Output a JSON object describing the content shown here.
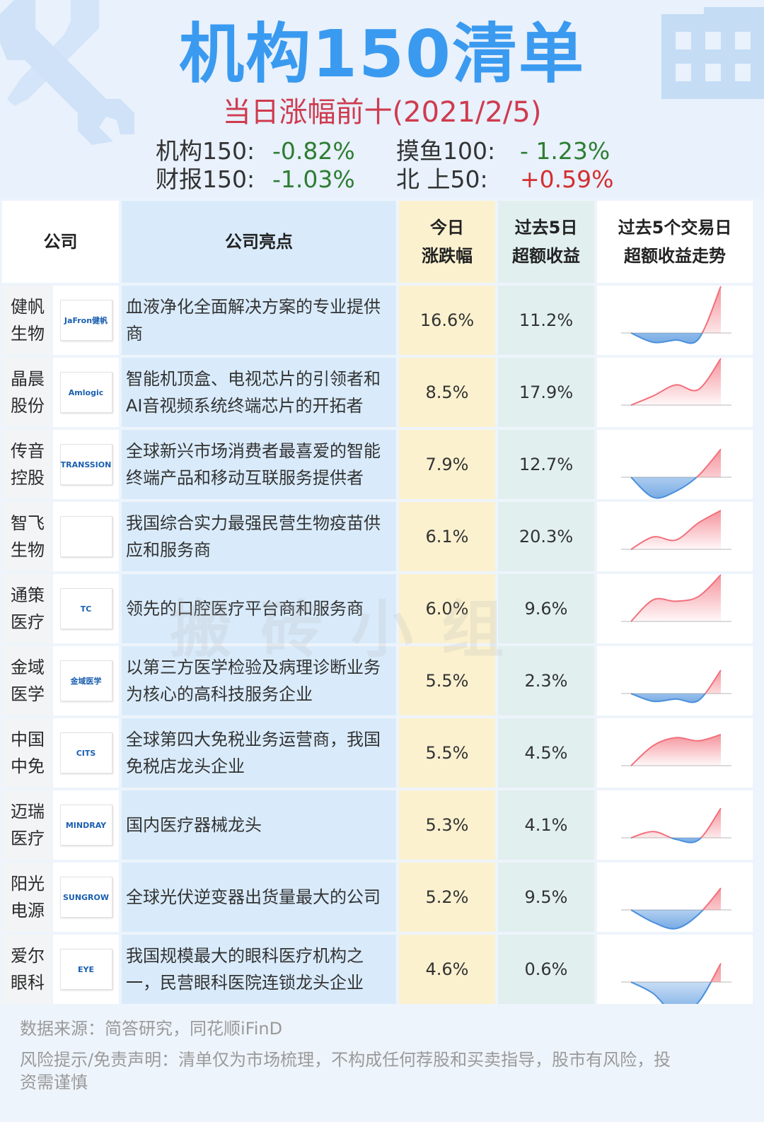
{
  "header": {
    "title": "机构150清单",
    "subtitle": "当日涨幅前十(2021/2/5)",
    "indices": [
      {
        "label": "机构150:",
        "value": "-0.82%",
        "sign": "neg"
      },
      {
        "label": "摸鱼100:",
        "value": "- 1.23%",
        "sign": "neg"
      },
      {
        "label": "财报150:",
        "value": "-1.03%",
        "sign": "neg"
      },
      {
        "label": "北  上50:",
        "value": "+0.59%",
        "sign": "pos"
      }
    ]
  },
  "table": {
    "headers": {
      "company": "公司",
      "highlight": "公司亮点",
      "today_line1": "今日",
      "today_line2": "涨跌幅",
      "excess_line1": "过去5日",
      "excess_line2": "超额收益",
      "trend_line1": "过去5个交易日",
      "trend_line2": "超额收益走势"
    },
    "rows": [
      {
        "name1": "健帆",
        "name2": "生物",
        "logo": "JaFron健帆",
        "logo_icon": "jafron-logo-icon",
        "hl1": "血液净化全面解决方案的专业提供",
        "hl2": "商",
        "today": "16.6%",
        "excess": "11.2%"
      },
      {
        "name1": "晶晨",
        "name2": "股份",
        "logo": "Amlogic",
        "logo_icon": "amlogic-logo-icon",
        "hl1": "智能机顶盒、电视芯片的引领者和",
        "hl2": "AI音视频系统终端芯片的开拓者",
        "today": "8.5%",
        "excess": "17.9%"
      },
      {
        "name1": "传音",
        "name2": "控股",
        "logo": "TRANSSION",
        "logo_icon": "transsion-logo-icon",
        "hl1": "全球新兴市场消费者最喜爱的智能",
        "hl2": "终端产品和移动互联服务提供者",
        "today": "7.9%",
        "excess": "12.7%"
      },
      {
        "name1": "智飞",
        "name2": "生物",
        "logo": "",
        "logo_icon": "zhifei-logo-icon",
        "hl1": "我国综合实力最强民营生物疫苗供",
        "hl2": "应和服务商",
        "today": "6.1%",
        "excess": "20.3%"
      },
      {
        "name1": "通策",
        "name2": "医疗",
        "logo": "TC",
        "logo_icon": "tongce-logo-icon",
        "hl1": "领先的口腔医疗平台商和服务商",
        "hl2": "",
        "today": "6.0%",
        "excess": "9.6%"
      },
      {
        "name1": "金域",
        "name2": "医学",
        "logo": "金域医学",
        "logo_icon": "kingmed-logo-icon",
        "hl1": "以第三方医学检验及病理诊断业务",
        "hl2": "为核心的高科技服务企业",
        "today": "5.5%",
        "excess": "2.3%"
      },
      {
        "name1": "中国",
        "name2": "中免",
        "logo": "CITS",
        "logo_icon": "cits-logo-icon",
        "hl1": "全球第四大免税业务运营商，我国",
        "hl2": "免税店龙头企业",
        "today": "5.5%",
        "excess": "4.5%"
      },
      {
        "name1": "迈瑞",
        "name2": "医疗",
        "logo": "MINDRAY",
        "logo_icon": "mindray-logo-icon",
        "hl1": "国内医疗器械龙头",
        "hl2": "",
        "today": "5.3%",
        "excess": "4.1%"
      },
      {
        "name1": "阳光",
        "name2": "电源",
        "logo": "SUNGROW",
        "logo_icon": "sungrow-logo-icon",
        "hl1": "全球光伏逆变器出货量最大的公司",
        "hl2": "",
        "today": "5.2%",
        "excess": "9.5%"
      },
      {
        "name1": "爱尔",
        "name2": "眼科",
        "logo": "EYE",
        "logo_icon": "aier-logo-icon",
        "hl1": "我国规模最大的眼科医疗机构之",
        "hl2": "一，民营眼科医院连锁龙头企业",
        "today": "4.6%",
        "excess": "0.6%"
      }
    ]
  },
  "chart_data": {
    "type": "area",
    "positive_color": "#f2707c",
    "negative_color": "#4a8fdc",
    "series": [
      {
        "values": [
          0.0,
          -1.2,
          -0.9,
          -0.8,
          6.0
        ]
      },
      {
        "values": [
          0.0,
          1.2,
          2.6,
          2.0,
          6.0
        ]
      },
      {
        "values": [
          0.0,
          -2.6,
          -1.8,
          0.2,
          3.6
        ]
      },
      {
        "values": [
          0.0,
          1.6,
          1.2,
          3.4,
          5.0
        ]
      },
      {
        "values": [
          0.0,
          2.8,
          2.6,
          3.2,
          6.0
        ]
      },
      {
        "values": [
          0.0,
          -1.0,
          -0.7,
          -0.9,
          3.0
        ]
      },
      {
        "values": [
          0.0,
          2.6,
          3.6,
          3.2,
          4.0
        ]
      },
      {
        "values": [
          0.0,
          0.8,
          -0.2,
          -0.3,
          3.8
        ]
      },
      {
        "values": [
          0.0,
          -1.6,
          -2.4,
          -0.6,
          2.8
        ]
      },
      {
        "values": [
          0.0,
          -1.5,
          -4.2,
          -2.6,
          2.4
        ]
      }
    ]
  },
  "footer": {
    "source": "数据来源：简答研究，同花顺iFinD",
    "disclaimer1": "风险提示/免责声明：清单仅为市场梳理，不构成任何荐股和买卖指导，股市有风险，投",
    "disclaimer2": "资需谨慎"
  },
  "watermark": "搬砖小组"
}
